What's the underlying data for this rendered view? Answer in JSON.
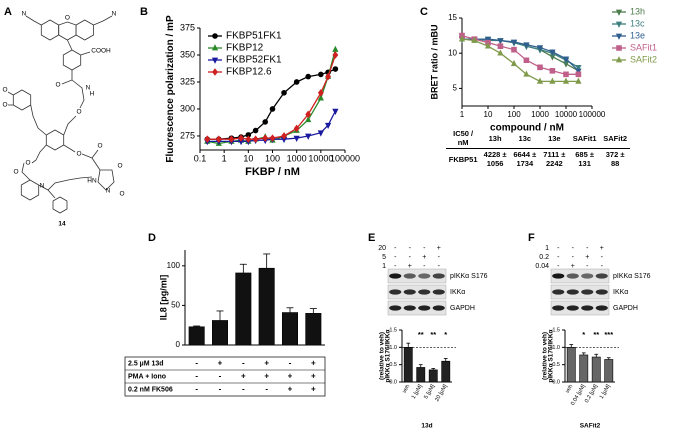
{
  "structure": {
    "label": "A",
    "atoms": [
      "N",
      "N",
      "O",
      "COOH",
      "O",
      "N",
      "H",
      "O",
      "O",
      "O",
      "O",
      "O",
      "N",
      "O",
      "O",
      "HN",
      "O",
      "N",
      "O"
    ],
    "compound": "14"
  },
  "ic50_table": {
    "header": [
      "IC50 / nM",
      "13h",
      "13c",
      "13e",
      "SAFit1",
      "SAFit2"
    ],
    "rows": [
      [
        "FKBP51",
        "4228 ± 1056",
        "6644 ± 1734",
        "7111 ± 2242",
        "685 ± 131",
        "372 ± 88"
      ]
    ]
  },
  "chart_data": [
    {
      "type": "line",
      "label": "B",
      "ylabel": "Fluorescence polarization / mP",
      "xlabel": "FKBP / nM",
      "xlog": true,
      "x": [
        0.2,
        0.6,
        2,
        5,
        10,
        20,
        50,
        100,
        300,
        1000,
        3000,
        10000,
        20000,
        40000
      ],
      "xlim": [
        0.1,
        100000
      ],
      "xticks": [
        0.1,
        1,
        10,
        100,
        1000,
        10000,
        100000
      ],
      "ylim": [
        262,
        375
      ],
      "yticks": [
        275,
        300,
        325,
        350,
        375
      ],
      "legend": "upper left",
      "series": [
        {
          "name": "FKBP51FK1",
          "color": "#000000",
          "marker": "circle",
          "values": [
            272,
            272,
            273,
            274,
            276,
            280,
            288,
            300,
            315,
            325,
            330,
            332,
            334,
            337
          ]
        },
        {
          "name": "FKBP12",
          "color": "#2a8a2a",
          "marker": "triangle-up",
          "values": [
            270,
            268,
            270,
            271,
            270,
            272,
            274,
            271,
            275,
            280,
            290,
            310,
            330,
            355
          ]
        },
        {
          "name": "FKBP52FK1",
          "color": "#1a1aa0",
          "marker": "triangle-down",
          "values": [
            270,
            270,
            270,
            270,
            270,
            271,
            271,
            272,
            272,
            273,
            275,
            278,
            285,
            298
          ]
        },
        {
          "name": "FKBP12.6",
          "color": "#d02020",
          "marker": "diamond",
          "values": [
            272,
            272,
            272,
            273,
            272,
            272,
            273,
            273,
            275,
            282,
            295,
            315,
            330,
            350
          ]
        }
      ]
    },
    {
      "type": "line",
      "label": "C",
      "ylabel": "BRET ratio / mBU",
      "xlabel": "compound / nM",
      "xlog": true,
      "x": [
        1,
        3,
        10,
        30,
        100,
        300,
        1000,
        3000,
        10000,
        30000
      ],
      "xlim": [
        1,
        100000
      ],
      "xticks": [
        1,
        10,
        100,
        1000,
        10000,
        100000
      ],
      "ylim": [
        2.5,
        15
      ],
      "yticks": [
        5,
        10,
        15
      ],
      "legend": "right",
      "series": [
        {
          "name": "13h",
          "color": "#4e7d4e",
          "marker": "triangle-down",
          "values": [
            12,
            12,
            12,
            11.8,
            11.5,
            11,
            10.5,
            9.5,
            8.5,
            7.5
          ]
        },
        {
          "name": "13c",
          "color": "#3f7f7f",
          "marker": "triangle-down",
          "values": [
            12,
            12,
            11.8,
            11.8,
            11.5,
            11,
            10.5,
            10,
            9,
            8
          ]
        },
        {
          "name": "13e",
          "color": "#2f5f8f",
          "marker": "triangle-down",
          "values": [
            12,
            12,
            12,
            11.8,
            11.6,
            11.2,
            10.8,
            10.2,
            9.2,
            7.5
          ]
        },
        {
          "name": "SAFit1",
          "color": "#c0608a",
          "marker": "square",
          "values": [
            12.5,
            12,
            11.5,
            11,
            10.5,
            9,
            8,
            7.5,
            7,
            7
          ]
        },
        {
          "name": "SAFit2",
          "color": "#7f9a4a",
          "marker": "triangle-up",
          "values": [
            12,
            11.8,
            11,
            10,
            8.5,
            7,
            6,
            6,
            6,
            6
          ]
        }
      ]
    },
    {
      "type": "bar",
      "label": "D",
      "ylabel": "IL8 [pg/ml]",
      "color": "#111111",
      "values": [
        23,
        31,
        91,
        97,
        41,
        40
      ],
      "errors": [
        1,
        12,
        11,
        18,
        6,
        6
      ],
      "ylim": [
        0,
        120
      ],
      "yticks": [
        0,
        50,
        100
      ],
      "conditions": [
        {
          "name": "2.5 µM 13d",
          "signs": [
            "-",
            "+",
            "-",
            "+",
            "-",
            "+"
          ]
        },
        {
          "name": "PMA + Iono",
          "signs": [
            "-",
            "-",
            "+",
            "+",
            "+",
            "+"
          ]
        },
        {
          "name": "0.2 nM FK506",
          "signs": [
            "-",
            "-",
            "-",
            "-",
            "+",
            "+"
          ]
        }
      ]
    },
    {
      "type": "bar",
      "label": "E",
      "ylabel": [
        "pIKKα S176/IKKα",
        "(relative to veh)"
      ],
      "xlabel": "13d",
      "color": "#222222",
      "categories": [
        "veh",
        "1 [µM]",
        "5 [µM]",
        "20 [µM]"
      ],
      "values": [
        1.0,
        0.42,
        0.35,
        0.6
      ],
      "errors": [
        0.12,
        0.08,
        0.04,
        0.08
      ],
      "annotations": [
        null,
        "**",
        "**",
        "*"
      ],
      "reference": 1,
      "ylim": [
        0,
        1.5
      ],
      "yticks": [
        {
          "value": 0,
          "label": "0.0"
        },
        0.5,
        {
          "value": 1,
          "label": "1.0"
        },
        1.5
      ],
      "treatment": [
        {
          "name": "20",
          "signs": [
            "-",
            "-",
            "-",
            "+"
          ]
        },
        {
          "name": "5",
          "signs": [
            "-",
            "-",
            "+",
            "-"
          ]
        },
        {
          "name": "1",
          "signs": [
            "-",
            "+",
            "-",
            "-"
          ]
        }
      ],
      "blot": [
        "pIKKα S176",
        "IKKα",
        "GAPDH"
      ]
    },
    {
      "type": "bar",
      "label": "F",
      "ylabel": [
        "pIKKα S176/IKKα",
        "(relative to veh)"
      ],
      "xlabel": "SAFit2",
      "color": "#666666",
      "categories": [
        "veh",
        "0.04 [µM]",
        "0.2 [µM]",
        "1 [µM]"
      ],
      "values": [
        1.0,
        0.78,
        0.72,
        0.65
      ],
      "errors": [
        0.08,
        0.06,
        0.08,
        0.05
      ],
      "annotations": [
        null,
        "*",
        "**",
        "***"
      ],
      "reference": 1,
      "ylim": [
        0,
        1.5
      ],
      "yticks": [
        {
          "value": 0,
          "label": "0.0"
        },
        0.5,
        {
          "value": 1,
          "label": "1.0"
        },
        1.5
      ],
      "treatment": [
        {
          "name": "1",
          "signs": [
            "-",
            "-",
            "-",
            "+"
          ]
        },
        {
          "name": "0.2",
          "signs": [
            "-",
            "-",
            "+",
            "-"
          ]
        },
        {
          "name": "0.04",
          "signs": [
            "-",
            "+",
            "-",
            "-"
          ]
        }
      ],
      "blot": [
        "pIKKα S176",
        "IKKα",
        "GAPDH"
      ]
    }
  ]
}
